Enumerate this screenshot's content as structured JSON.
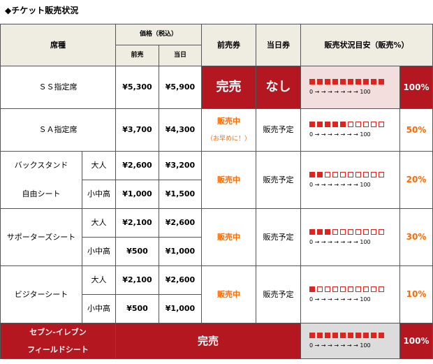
{
  "title": "◆チケット販売状況",
  "header": {
    "seat": "席種",
    "price": "価格（税込）",
    "advance": "前売",
    "dayof": "当日",
    "advance_ticket": "前売券",
    "dayof_ticket": "当日券",
    "status": "販売状況目安（販売%）"
  },
  "scale_text": "0 → → → → → → → 100",
  "rows": [
    {
      "seat": "ＳＳ指定席",
      "adv": "¥5,300",
      "day": "¥5,900",
      "adv_ticket": "完売",
      "day_ticket": "なし",
      "fill": 10,
      "pct": "100%"
    },
    {
      "seat": "ＳＡ指定席",
      "adv": "¥3,700",
      "day": "¥4,300",
      "adv_ticket": "販売中",
      "note": "（お早めに！）",
      "day_ticket": "販売予定",
      "fill": 5,
      "pct": "50%"
    },
    {
      "seat_line1": "バックスタンド",
      "seat_line2": "自由シート",
      "sub1": "大人",
      "sub2": "小中高",
      "adv1": "¥2,600",
      "day1": "¥3,200",
      "adv2": "¥1,000",
      "day2": "¥1,500",
      "adv_ticket": "販売中",
      "day_ticket": "販売予定",
      "fill": 2,
      "pct": "20%"
    },
    {
      "seat": "サポーターズシート",
      "sub1": "大人",
      "sub2": "小中高",
      "adv1": "¥2,100",
      "day1": "¥2,600",
      "adv2": "¥500",
      "day2": "¥1,000",
      "adv_ticket": "販売中",
      "day_ticket": "販売予定",
      "fill": 3,
      "pct": "30%"
    },
    {
      "seat": "ビジターシート",
      "sub1": "大人",
      "sub2": "小中高",
      "adv1": "¥2,100",
      "day1": "¥2,600",
      "adv2": "¥500",
      "day2": "¥1,000",
      "adv_ticket": "販売中",
      "day_ticket": "販売予定",
      "fill": 1,
      "pct": "10%"
    },
    {
      "seat_line1": "セブン-イレブン",
      "seat_line2": "フィールドシート",
      "status": "完売",
      "fill": 10,
      "pct": "100%"
    }
  ],
  "colors": {
    "red": "#b4171f",
    "orange": "#ff6a00",
    "header_bg": "#efece2",
    "box_red": "#e0231c"
  }
}
